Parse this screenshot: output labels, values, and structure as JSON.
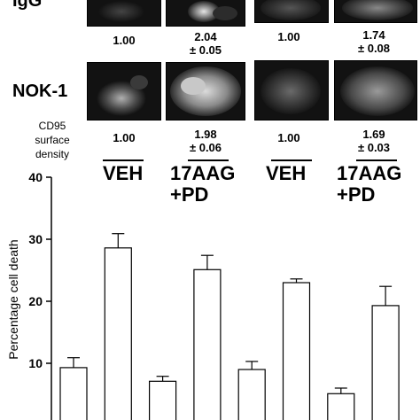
{
  "panel": {
    "row_labels": [
      "IgG",
      "NOK-1"
    ],
    "cd95_label": [
      "CD95",
      "surface",
      "density"
    ],
    "igg_values": [
      {
        "main": "1.00",
        "sd": ""
      },
      {
        "main": "2.04",
        "sd": "± 0.05"
      },
      {
        "main": "1.00",
        "sd": ""
      },
      {
        "main": "1.74",
        "sd": "± 0.08"
      }
    ],
    "nok1_values": [
      {
        "main": "1.00",
        "sd": ""
      },
      {
        "main": "1.98",
        "sd": "± 0.06"
      },
      {
        "main": "1.00",
        "sd": ""
      },
      {
        "main": "1.69",
        "sd": "± 0.03"
      }
    ],
    "treatments": [
      {
        "line1": "VEH",
        "line2": ""
      },
      {
        "line1": "17AAG",
        "line2": "+PD"
      },
      {
        "line1": "VEH",
        "line2": ""
      },
      {
        "line1": "17AAG",
        "line2": "+PD"
      }
    ]
  },
  "chart_data": {
    "type": "bar",
    "ylabel": "Percentage cell death",
    "ylim": [
      0,
      40
    ],
    "yticks": [
      "10",
      "20",
      "30",
      "40"
    ],
    "ytick_values": [
      10,
      20,
      30,
      40
    ],
    "values": [
      9.3,
      28.6,
      7.1,
      25.1,
      9.0,
      23.0,
      5.1,
      19.3
    ],
    "errors": [
      1.6,
      2.3,
      0.8,
      2.3,
      1.3,
      0.6,
      0.9,
      3.1
    ],
    "bar_color": "#ffffff",
    "grid": false
  }
}
